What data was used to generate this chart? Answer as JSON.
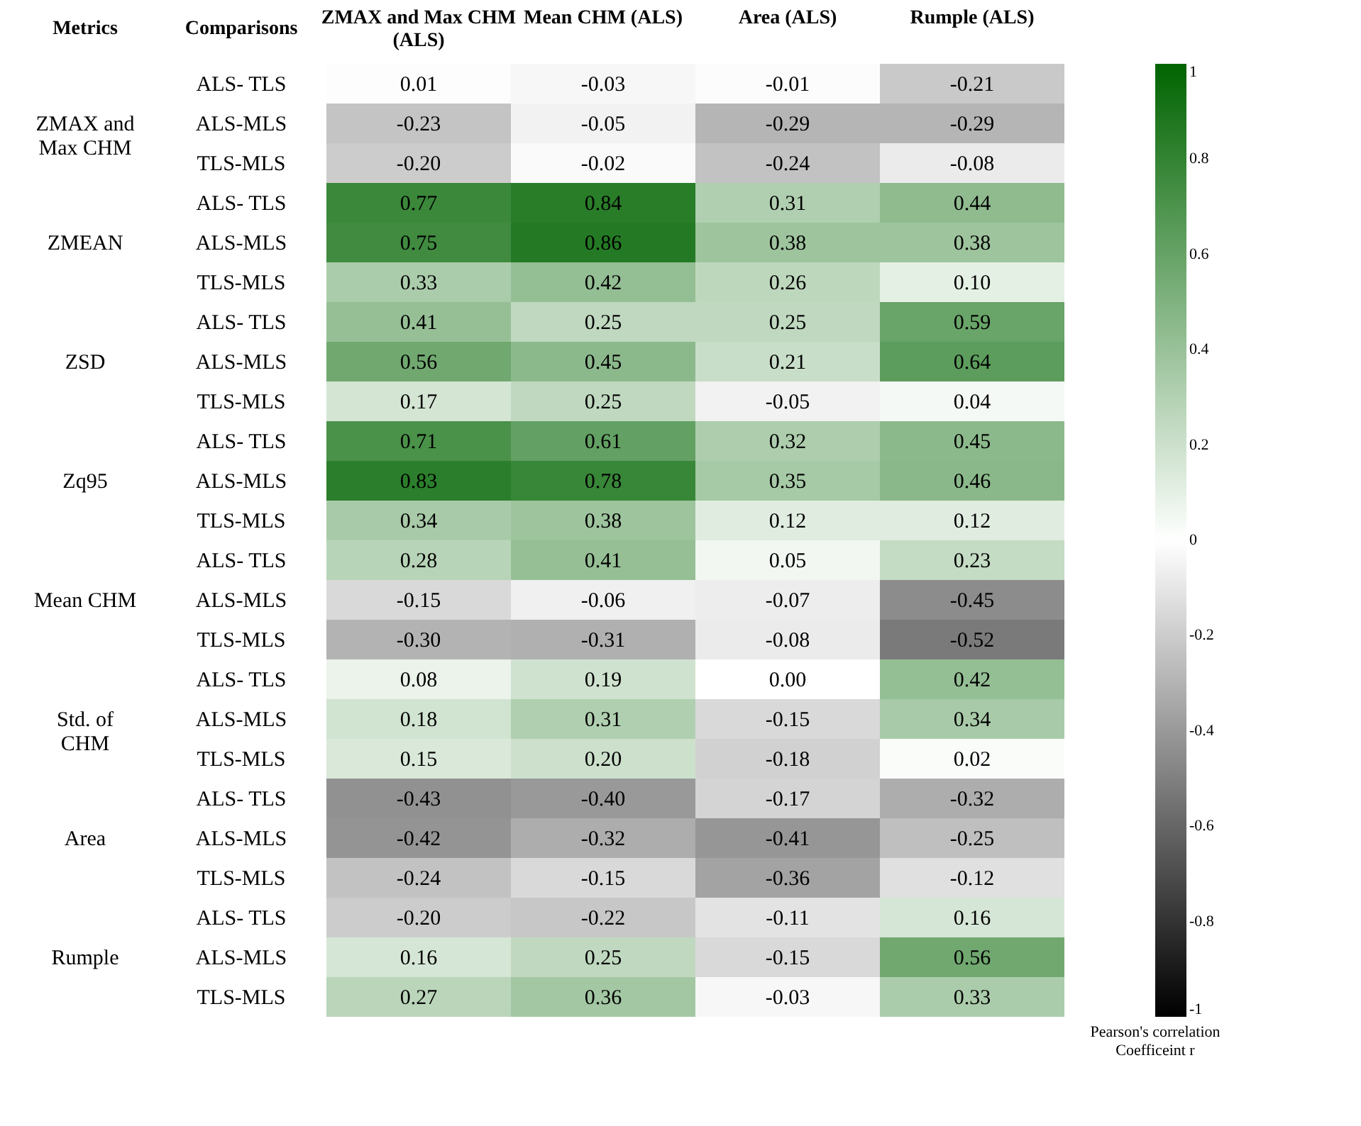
{
  "chart_data": {
    "type": "heatmap",
    "xlabel": "Comparisons",
    "ylabel": "Metrics",
    "categories": [
      "ZMAX and Max CHM (ALS)",
      "Mean CHM (ALS)",
      "Area (ALS)",
      "Rumple (ALS)"
    ],
    "y_categories": [
      "ALS- TLS",
      "ALS-MLS",
      "TLS-MLS",
      "ALS- TLS",
      "ALS-MLS",
      "TLS-MLS",
      "ALS- TLS",
      "ALS-MLS",
      "TLS-MLS",
      "ALS- TLS",
      "ALS-MLS",
      "TLS-MLS",
      "ALS- TLS",
      "ALS-MLS",
      "TLS-MLS",
      "ALS- TLS",
      "ALS-MLS",
      "TLS-MLS",
      "ALS- TLS",
      "ALS-MLS",
      "TLS-MLS",
      "ALS- TLS",
      "ALS-MLS",
      "TLS-MLS"
    ],
    "y2_categories": [
      null,
      "ZMAX and Max CHM",
      null,
      null,
      "ZMEAN",
      null,
      null,
      "ZSD",
      null,
      null,
      "Zq95",
      null,
      null,
      "Mean CHM",
      null,
      null,
      "Std. of CHM",
      null,
      null,
      "Area",
      null,
      null,
      "Rumple",
      null
    ],
    "cells": [
      [
        0.01,
        -0.03,
        -0.01,
        -0.21
      ],
      [
        -0.23,
        -0.05,
        -0.29,
        -0.29
      ],
      [
        -0.2,
        -0.02,
        -0.24,
        -0.08
      ],
      [
        0.77,
        0.84,
        0.31,
        0.44
      ],
      [
        0.75,
        0.86,
        0.38,
        0.38
      ],
      [
        0.33,
        0.42,
        0.26,
        0.1
      ],
      [
        0.41,
        0.25,
        0.25,
        0.59
      ],
      [
        0.56,
        0.45,
        0.21,
        0.64
      ],
      [
        0.17,
        0.25,
        -0.05,
        0.04
      ],
      [
        0.71,
        0.61,
        0.32,
        0.45
      ],
      [
        0.83,
        0.78,
        0.35,
        0.46
      ],
      [
        0.34,
        0.38,
        0.12,
        0.12
      ],
      [
        0.28,
        0.41,
        0.05,
        0.23
      ],
      [
        -0.15,
        -0.06,
        -0.07,
        -0.45
      ],
      [
        -0.3,
        -0.31,
        -0.08,
        -0.52
      ],
      [
        0.08,
        0.19,
        0.0,
        0.42
      ],
      [
        0.18,
        0.31,
        -0.15,
        0.34
      ],
      [
        0.15,
        0.2,
        -0.18,
        0.02
      ],
      [
        -0.43,
        -0.4,
        -0.17,
        -0.32
      ],
      [
        -0.42,
        -0.32,
        -0.41,
        -0.25
      ],
      [
        -0.24,
        -0.15,
        -0.36,
        -0.12
      ],
      [
        -0.2,
        -0.22,
        -0.11,
        0.16
      ],
      [
        0.16,
        0.25,
        -0.15,
        0.56
      ],
      [
        0.27,
        0.36,
        -0.03,
        0.33
      ]
    ],
    "cell_labels": [
      [
        "0.01",
        "-0.03",
        "-0.01",
        "-0.21"
      ],
      [
        "-0.23",
        "-0.05",
        "-0.29",
        "-0.29"
      ],
      [
        "-0.20",
        "-0.02",
        "-0.24",
        "-0.08"
      ],
      [
        "0.77",
        "0.84",
        "0.31",
        "0.44"
      ],
      [
        "0.75",
        "0.86",
        "0.38",
        "0.38"
      ],
      [
        "0.33",
        "0.42",
        "0.26",
        "0.10"
      ],
      [
        "0.41",
        "0.25",
        "0.25",
        "0.59"
      ],
      [
        "0.56",
        "0.45",
        "0.21",
        "0.64"
      ],
      [
        "0.17",
        "0.25",
        "-0.05",
        "0.04"
      ],
      [
        "0.71",
        "0.61",
        "0.32",
        "0.45"
      ],
      [
        "0.83",
        "0.78",
        "0.35",
        "0.46"
      ],
      [
        "0.34",
        "0.38",
        "0.12",
        "0.12"
      ],
      [
        "0.28",
        "0.41",
        "0.05",
        "0.23"
      ],
      [
        "-0.15",
        "-0.06",
        "-0.07",
        "-0.45"
      ],
      [
        "-0.30",
        "-0.31",
        "-0.08",
        "-0.52"
      ],
      [
        "0.08",
        "0.19",
        "0.00",
        "0.42"
      ],
      [
        "0.18",
        "0.31",
        "-0.15",
        "0.34"
      ],
      [
        "0.15",
        "0.20",
        "-0.18",
        "0.02"
      ],
      [
        "-0.43",
        "-0.40",
        "-0.17",
        "-0.32"
      ],
      [
        "-0.42",
        "-0.32",
        "-0.41",
        "-0.25"
      ],
      [
        "-0.24",
        "-0.15",
        "-0.36",
        "-0.12"
      ],
      [
        "-0.20",
        "-0.22",
        "-0.11",
        "0.16"
      ],
      [
        "0.16",
        "0.25",
        "-0.15",
        "0.56"
      ],
      [
        "0.27",
        "0.36",
        "-0.03",
        "0.33"
      ]
    ],
    "clim": [
      -1,
      1
    ],
    "cticks": [
      -1,
      -0.8,
      -0.6,
      -0.4,
      -0.2,
      0,
      0.2,
      0.4,
      0.6,
      0.8,
      1
    ],
    "clabel": "Pearson's correlation Coefficeint r",
    "grid": false
  }
}
